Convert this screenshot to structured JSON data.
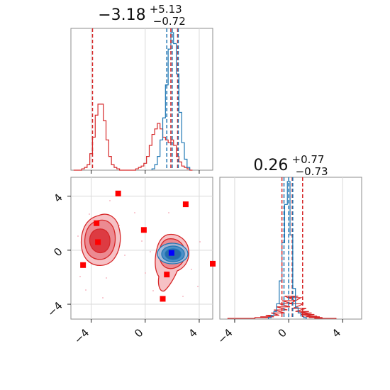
{
  "chart_data": {
    "type": "corner",
    "parameters": 2,
    "colors": {
      "series_a": "#d62728",
      "series_b": "#1f77b4",
      "marker": "#ff0000",
      "truth": "#0000ff"
    },
    "panels": [
      {
        "type": "histogram",
        "title": {
          "base": "−3.18",
          "sup": "+5.13",
          "sub": "−0.72"
        },
        "xlim": [
          -5.5,
          5.0
        ],
        "ticks": [
          -4,
          0,
          4
        ],
        "tick_labels": [
          "−4",
          "0",
          "4"
        ],
        "series": [
          {
            "color": "#d62728",
            "bin_centers": [
              -5.2,
              -5.0,
              -4.8,
              -4.6,
              -4.4,
              -4.2,
              -4.0,
              -3.8,
              -3.6,
              -3.4,
              -3.2,
              -3.0,
              -2.8,
              -2.6,
              -2.4,
              -2.2,
              -2.0,
              -1.8,
              -1.6,
              -1.4,
              -1.2,
              -1.0,
              -0.8,
              -0.6,
              -0.4,
              -0.2,
              0.0,
              0.2,
              0.4,
              0.6,
              0.8,
              1.0,
              1.2,
              1.4,
              1.6,
              1.8,
              2.0,
              2.2,
              2.4,
              2.6,
              2.8,
              3.0,
              3.2,
              3.4
            ],
            "counts": [
              0,
              0,
              0,
              1,
              2,
              4,
              12,
              24,
              40,
              48,
              48,
              36,
              22,
              10,
              4,
              2,
              1,
              0,
              0,
              0,
              0,
              0,
              0,
              1,
              2,
              3,
              5,
              10,
              18,
              26,
              30,
              34,
              30,
              24,
              22,
              20,
              22,
              18,
              10,
              6,
              3,
              2,
              1,
              0
            ]
          },
          {
            "color": "#1f77b4",
            "bin_centers": [
              0.6,
              0.8,
              1.0,
              1.2,
              1.4,
              1.6,
              1.8,
              2.0,
              2.2,
              2.4,
              2.6,
              2.8,
              3.0,
              3.2
            ],
            "counts": [
              1,
              4,
              10,
              22,
              38,
              62,
              88,
              100,
              92,
              70,
              42,
              20,
              8,
              2
            ]
          }
        ],
        "quantile_lines": [
          {
            "color": "#d62728",
            "x": -3.9
          },
          {
            "color": "#d62728",
            "x": 1.6
          },
          {
            "color": "#d62728",
            "x": 1.9
          },
          {
            "color": "#d62728",
            "x": 2.4
          },
          {
            "color": "#1f77b4",
            "x": 1.6
          },
          {
            "color": "#1f77b4",
            "x": 2.0
          },
          {
            "color": "#1f77b4",
            "x": 2.45
          }
        ]
      },
      {
        "type": "contour",
        "xlim": [
          -5.5,
          5.0
        ],
        "ylim": [
          -5.1,
          5.4
        ],
        "x_ticks": [
          -4,
          0,
          4
        ],
        "x_tick_labels": [
          "−4",
          "0",
          "4"
        ],
        "y_ticks": [
          -4,
          0,
          4
        ],
        "y_tick_labels": [
          "−4",
          "0",
          "4"
        ],
        "markers": [
          {
            "x": -2.0,
            "y": 4.2
          },
          {
            "x": 3.0,
            "y": 3.4
          },
          {
            "x": -3.6,
            "y": 2.0
          },
          {
            "x": -0.1,
            "y": 1.5
          },
          {
            "x": -3.5,
            "y": 0.6
          },
          {
            "x": -4.6,
            "y": -1.1
          },
          {
            "x": 5.0,
            "y": -1.0
          },
          {
            "x": 1.6,
            "y": -1.8
          },
          {
            "x": 1.3,
            "y": -3.6
          }
        ],
        "truth_point": {
          "x": 1.95,
          "y": -0.2
        }
      },
      {
        "type": "histogram",
        "title": {
          "base": "0.26",
          "sup": "+0.77",
          "sub": "−0.73"
        },
        "xlim": [
          -5.1,
          5.4
        ],
        "ticks": [
          -4,
          0,
          4
        ],
        "tick_labels": [
          "−4",
          "0",
          "4"
        ],
        "series": [
          {
            "color": "#d62728",
            "bin_centers": [
              -4.0,
              -3.0,
              -2.0,
              -1.6,
              -1.2,
              -0.8,
              -0.6,
              -0.4,
              -0.2,
              0.0,
              0.2,
              0.4,
              0.6,
              0.8,
              1.0,
              1.2,
              1.4,
              1.6,
              1.8,
              2.0,
              2.4,
              3.0
            ],
            "counts": [
              1,
              1,
              2,
              3,
              5,
              8,
              12,
              16,
              20,
              24,
              30,
              28,
              20,
              14,
              10,
              8,
              6,
              4,
              3,
              2,
              1,
              1
            ]
          },
          {
            "color": "#1f77b4",
            "bin_centers": [
              -1.4,
              -1.2,
              -1.0,
              -0.8,
              -0.6,
              -0.4,
              -0.2,
              0.0,
              0.2,
              0.4,
              0.6,
              0.8,
              1.0,
              1.2
            ],
            "counts": [
              2,
              5,
              10,
              20,
              50,
              100,
              150,
              180,
              110,
              40,
              15,
              8,
              4,
              2
            ]
          }
        ],
        "quantile_lines": [
          {
            "color": "#d62728",
            "x": -0.5
          },
          {
            "color": "#d62728",
            "x": 0.26
          },
          {
            "color": "#d62728",
            "x": 1.03
          },
          {
            "color": "#1f77b4",
            "x": -0.35
          },
          {
            "color": "#1f77b4",
            "x": 0.0
          },
          {
            "color": "#1f77b4",
            "x": 0.3
          }
        ]
      }
    ]
  }
}
